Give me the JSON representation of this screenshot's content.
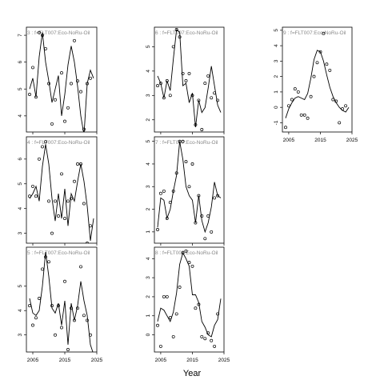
{
  "figure": {
    "xlabel": "Year"
  },
  "chart_data": [
    {
      "type": "line",
      "panel": "3",
      "title": "3 : f=FLT007:Eco-NoRu-Oil",
      "xlim": [
        2003,
        2025
      ],
      "ylim": [
        3.4,
        7.3
      ],
      "xticks": [
        2005,
        2015,
        2025
      ],
      "yticks": [
        4,
        5,
        6,
        7
      ],
      "x_tick_labels_shown": false,
      "series": [
        {
          "kind": "line",
          "x": [
            2004,
            2005,
            2006,
            2007,
            2008,
            2009,
            2010,
            2011,
            2012,
            2013,
            2014,
            2015,
            2016,
            2017,
            2018,
            2019,
            2020,
            2021,
            2022,
            2023,
            2024
          ],
          "y": [
            5.0,
            5.4,
            4.7,
            6.2,
            7.1,
            6.0,
            5.3,
            4.5,
            5.0,
            5.5,
            4.0,
            4.8,
            5.9,
            6.6,
            6.0,
            5.1,
            4.0,
            3.3,
            5.2,
            5.7,
            5.4
          ]
        },
        {
          "kind": "points",
          "x": [
            2004,
            2005,
            2006,
            2007,
            2008,
            2009,
            2010,
            2011,
            2012,
            2013,
            2014,
            2015,
            2016,
            2017,
            2018,
            2019,
            2020,
            2021,
            2022,
            2023
          ],
          "y": [
            4.8,
            5.8,
            4.7,
            7.1,
            7.0,
            6.5,
            5.2,
            3.7,
            4.6,
            3.3,
            5.6,
            3.8,
            4.3,
            5.2,
            6.8,
            5.3,
            4.9,
            3.5,
            5.2,
            5.4
          ]
        }
      ]
    },
    {
      "type": "line",
      "panel": "4",
      "title": "4 : f=FLT007:Eco-NoRu-Oil",
      "xlim": [
        2003,
        2025
      ],
      "ylim": [
        2.6,
        6.9
      ],
      "xticks": [
        2005,
        2015,
        2025
      ],
      "yticks": [
        3,
        4,
        5,
        6
      ],
      "x_tick_labels_shown": false,
      "series": [
        {
          "kind": "line",
          "x": [
            2004,
            2005,
            2006,
            2007,
            2008,
            2009,
            2010,
            2011,
            2012,
            2013,
            2014,
            2015,
            2016,
            2017,
            2018,
            2019,
            2020,
            2021,
            2022,
            2023,
            2024
          ],
          "y": [
            4.4,
            4.6,
            4.9,
            4.3,
            5.7,
            6.6,
            5.8,
            4.4,
            3.5,
            4.6,
            3.6,
            4.8,
            3.3,
            4.6,
            4.3,
            5.1,
            5.8,
            5.1,
            4.1,
            2.7,
            3.6
          ]
        },
        {
          "kind": "points",
          "x": [
            2004,
            2005,
            2006,
            2007,
            2008,
            2009,
            2010,
            2011,
            2012,
            2013,
            2014,
            2015,
            2016,
            2017,
            2018,
            2019,
            2020,
            2021,
            2022,
            2023
          ],
          "y": [
            4.5,
            4.9,
            4.5,
            6.0,
            6.5,
            6.7,
            4.3,
            3.0,
            4.3,
            3.7,
            5.4,
            3.6,
            4.3,
            4.4,
            5.1,
            5.8,
            5.8,
            4.2,
            2.6,
            3.3
          ]
        }
      ]
    },
    {
      "type": "line",
      "panel": "5",
      "title": "5 : f=FLT007:Eco-NoRu-Oil",
      "xlim": [
        2003,
        2025
      ],
      "ylim": [
        2.3,
        6.6
      ],
      "xticks": [
        2005,
        2015,
        2025
      ],
      "yticks": [
        3,
        4,
        5
      ],
      "x_tick_labels_shown": true,
      "series": [
        {
          "kind": "line",
          "x": [
            2004,
            2005,
            2006,
            2007,
            2008,
            2009,
            2010,
            2011,
            2012,
            2013,
            2014,
            2015,
            2016,
            2017,
            2018,
            2019,
            2020,
            2021,
            2022,
            2023,
            2024
          ],
          "y": [
            4.5,
            3.9,
            3.8,
            4.0,
            5.0,
            6.4,
            5.4,
            4.1,
            3.9,
            4.3,
            3.4,
            4.4,
            2.6,
            4.3,
            3.6,
            4.2,
            5.2,
            4.4,
            3.8,
            2.6,
            2.2
          ]
        },
        {
          "kind": "points",
          "x": [
            2004,
            2005,
            2006,
            2007,
            2008,
            2009,
            2010,
            2011,
            2012,
            2013,
            2014,
            2015,
            2016,
            2017,
            2018,
            2019,
            2020,
            2021,
            2022,
            2023
          ],
          "y": [
            4.2,
            3.4,
            3.7,
            4.5,
            5.7,
            6.2,
            6.0,
            4.2,
            3.0,
            4.2,
            3.3,
            5.2,
            2.4,
            4.1,
            3.6,
            4.1,
            5.8,
            3.8,
            3.6,
            3.0
          ]
        }
      ]
    },
    {
      "type": "line",
      "panel": "6",
      "title": "6 : f=FLT007:Eco-NoRu-Oil",
      "xlim": [
        2003,
        2025
      ],
      "ylim": [
        1.5,
        5.8
      ],
      "xticks": [
        2005,
        2015,
        2025
      ],
      "yticks": [
        2,
        3,
        4,
        5
      ],
      "x_tick_labels_shown": false,
      "series": [
        {
          "kind": "line",
          "x": [
            2004,
            2005,
            2006,
            2007,
            2008,
            2009,
            2010,
            2011,
            2012,
            2013,
            2014,
            2015,
            2016,
            2017,
            2018,
            2019,
            2020,
            2021,
            2022,
            2023,
            2024
          ],
          "y": [
            3.8,
            3.5,
            2.9,
            3.6,
            3.2,
            4.5,
            5.7,
            5.6,
            3.4,
            3.5,
            2.7,
            3.1,
            1.7,
            2.8,
            2.3,
            2.5,
            3.3,
            4.2,
            3.4,
            2.6,
            2.3
          ]
        },
        {
          "kind": "points",
          "x": [
            2004,
            2005,
            2006,
            2007,
            2008,
            2009,
            2010,
            2011,
            2012,
            2013,
            2014,
            2015,
            2016,
            2017,
            2018,
            2019,
            2020,
            2021,
            2022,
            2023
          ],
          "y": [
            3.4,
            3.5,
            2.9,
            3.6,
            3.0,
            5.0,
            5.7,
            5.4,
            3.9,
            3.6,
            3.9,
            3.0,
            1.8,
            2.8,
            1.6,
            3.5,
            3.8,
            2.9,
            3.1,
            2.8
          ]
        }
      ]
    },
    {
      "type": "line",
      "panel": "7",
      "title": "7 : f=FLT007:Eco-NoRu-Oil",
      "xlim": [
        2003,
        2025
      ],
      "ylim": [
        0.5,
        5.2
      ],
      "xticks": [
        2005,
        2015,
        2025
      ],
      "yticks": [
        1,
        2,
        3,
        4,
        5
      ],
      "x_tick_labels_shown": false,
      "series": [
        {
          "kind": "line",
          "x": [
            2004,
            2005,
            2006,
            2007,
            2008,
            2009,
            2010,
            2011,
            2012,
            2013,
            2014,
            2015,
            2016,
            2017,
            2018,
            2019,
            2020,
            2021,
            2022,
            2023,
            2024
          ],
          "y": [
            1.2,
            2.5,
            2.4,
            1.6,
            2.0,
            2.8,
            3.5,
            5.0,
            4.2,
            3.0,
            2.6,
            2.4,
            1.4,
            2.6,
            1.5,
            1.0,
            1.4,
            2.1,
            3.2,
            2.6,
            2.5
          ]
        },
        {
          "kind": "points",
          "x": [
            2004,
            2005,
            2006,
            2007,
            2008,
            2009,
            2010,
            2011,
            2012,
            2013,
            2014,
            2015,
            2016,
            2017,
            2018,
            2019,
            2020,
            2021,
            2022,
            2023
          ],
          "y": [
            1.1,
            2.7,
            2.8,
            1.6,
            2.3,
            2.8,
            3.6,
            5.0,
            5.0,
            4.1,
            3.0,
            4.0,
            1.4,
            2.6,
            1.7,
            0.7,
            1.7,
            1.0,
            2.5,
            2.6
          ]
        }
      ]
    },
    {
      "type": "line",
      "panel": "8",
      "title": "8 : f=FLT007:Eco-NoRu-Oil",
      "xlim": [
        2003,
        2025
      ],
      "ylim": [
        -0.9,
        4.6
      ],
      "xticks": [
        2005,
        2015,
        2025
      ],
      "yticks": [
        0,
        1,
        2,
        3,
        4
      ],
      "x_tick_labels_shown": true,
      "series": [
        {
          "kind": "line",
          "x": [
            2004,
            2005,
            2006,
            2007,
            2008,
            2009,
            2010,
            2011,
            2012,
            2013,
            2014,
            2015,
            2016,
            2017,
            2018,
            2019,
            2020,
            2021,
            2022,
            2023,
            2024
          ],
          "y": [
            0.7,
            1.4,
            1.3,
            1.0,
            0.7,
            1.2,
            2.2,
            3.7,
            4.3,
            4.0,
            3.6,
            2.1,
            2.1,
            1.7,
            0.7,
            0.4,
            0.0,
            -0.1,
            0.5,
            0.8,
            1.9
          ]
        },
        {
          "kind": "points",
          "x": [
            2004,
            2005,
            2006,
            2007,
            2008,
            2009,
            2010,
            2011,
            2012,
            2013,
            2014,
            2015,
            2016,
            2017,
            2018,
            2019,
            2020,
            2021,
            2022,
            2023
          ],
          "y": [
            0.5,
            -0.6,
            2.0,
            2.0,
            0.9,
            -0.1,
            1.1,
            2.5,
            4.3,
            4.4,
            3.8,
            3.6,
            1.4,
            1.6,
            -0.1,
            -0.2,
            0.1,
            -0.3,
            -0.6,
            1.1
          ]
        }
      ]
    },
    {
      "type": "line",
      "panel": "9",
      "title": "9 : f=FLT007:Eco-NoRu-Oil",
      "xlim": [
        2003,
        2025
      ],
      "ylim": [
        -1.6,
        5.2
      ],
      "xticks": [
        2005,
        2015,
        2025
      ],
      "yticks": [
        -1,
        0,
        1,
        2,
        3,
        4,
        5
      ],
      "x_tick_labels_shown": true,
      "series": [
        {
          "kind": "line",
          "x": [
            2004,
            2005,
            2006,
            2007,
            2008,
            2009,
            2010,
            2011,
            2012,
            2013,
            2014,
            2015,
            2016,
            2017,
            2018,
            2019,
            2020,
            2021,
            2022,
            2023,
            2024
          ],
          "y": [
            -0.7,
            -0.1,
            0.3,
            0.6,
            0.7,
            0.6,
            0.5,
            0.9,
            1.9,
            3.1,
            3.7,
            3.6,
            3.0,
            2.1,
            1.3,
            0.7,
            0.3,
            0.0,
            -0.2,
            -0.3,
            0.0
          ]
        },
        {
          "kind": "points",
          "x": [
            2004,
            2005,
            2006,
            2007,
            2008,
            2009,
            2010,
            2011,
            2012,
            2013,
            2014,
            2015,
            2016,
            2017,
            2018,
            2019,
            2020,
            2021,
            2022,
            2023
          ],
          "y": [
            -1.3,
            0.1,
            0.5,
            1.2,
            1.0,
            -0.5,
            -0.5,
            -0.7,
            0.7,
            2.0,
            2.9,
            3.6,
            4.8,
            2.8,
            2.4,
            0.5,
            0.4,
            -1.0,
            -0.1,
            0.1
          ]
        }
      ]
    }
  ]
}
